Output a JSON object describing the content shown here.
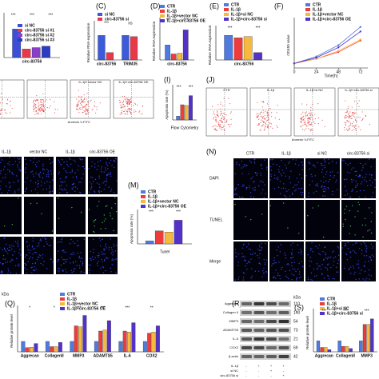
{
  "panel_labels": [
    "(C)",
    "(D)",
    "(E)",
    "(F)",
    "(I)",
    "(J)",
    "(M)",
    "(N)",
    "(Q)",
    "(R)",
    "(S)"
  ],
  "chart_data": [
    {
      "type": "bar",
      "categories": [
        "circ-83756"
      ],
      "ylim": [
        0,
        1.4
      ],
      "series": [
        {
          "name": "si NC",
          "color": "#3b4fd8",
          "values": [
            1.0
          ]
        },
        {
          "name": "circ-83756 si #1",
          "color": "#e8394a",
          "values": [
            0.3
          ]
        },
        {
          "name": "circ-83756 si #2",
          "color": "#8a3fc9",
          "values": [
            0.35
          ]
        },
        {
          "name": "circ-83756 si #3",
          "color": "#2a3cc0",
          "values": [
            0.4
          ]
        }
      ],
      "annotations": [
        "***",
        "***",
        "***"
      ]
    },
    {
      "type": "bar",
      "ylabel": "Relative RNA expression",
      "categories": [
        "circ-83756",
        "TRIM35"
      ],
      "ylim": [
        0,
        1.4
      ],
      "series": [
        {
          "name": "si NC",
          "color": "#3b5bd8",
          "values": [
            1.0,
            1.0
          ]
        },
        {
          "name": "circ-83756 si",
          "color": "#e8394a",
          "values": [
            0.3,
            0.95
          ]
        }
      ],
      "annotations": [
        "***",
        "ns"
      ]
    },
    {
      "type": "bar",
      "ylabel": "Relative RNA expression",
      "categories": [
        "circ-83756"
      ],
      "ylim": [
        0,
        2.5
      ],
      "series": [
        {
          "name": "CTR",
          "color": "#4f7be0",
          "values": [
            1.0
          ]
        },
        {
          "name": "IL-1β",
          "color": "#ee3c3c",
          "values": [
            0.4
          ]
        },
        {
          "name": "IL-1β+vector NC",
          "color": "#f4b93e",
          "values": [
            0.45
          ]
        },
        {
          "name": "IL-1β+circ-83756 OE",
          "color": "#5432c8",
          "values": [
            2.0
          ]
        }
      ],
      "annotations": [
        "***",
        "***"
      ]
    },
    {
      "type": "bar",
      "ylabel": "Relative RNA expression",
      "categories": [
        "circ-83756"
      ],
      "ylim": [
        0,
        1.2
      ],
      "series": [
        {
          "name": "CTR",
          "color": "#4f7be0",
          "values": [
            1.0
          ]
        },
        {
          "name": "IL-1β",
          "color": "#ee3c3c",
          "values": [
            0.9
          ]
        },
        {
          "name": "IL-1β+si NC",
          "color": "#f4b93e",
          "values": [
            0.95
          ]
        },
        {
          "name": "IL-1β+circ-83756 si",
          "color": "#5432c8",
          "values": [
            0.3
          ]
        }
      ],
      "annotations": [
        "***",
        "***"
      ]
    },
    {
      "type": "line",
      "ylabel": "OD450 value",
      "xlabel": "Time(h)",
      "x": [
        0,
        24,
        48,
        72
      ],
      "xlim": [
        0,
        80
      ],
      "xticks": [
        0,
        24,
        48,
        72
      ],
      "ylim": [
        0,
        2
      ],
      "series": [
        {
          "name": "CTR",
          "color": "#4f7be0",
          "values": [
            0.2,
            0.5,
            1.0,
            1.8
          ]
        },
        {
          "name": "IL-1β",
          "color": "#ee3c3c",
          "values": [
            0.2,
            0.4,
            0.7,
            1.2
          ]
        },
        {
          "name": "IL-1β+vector NC",
          "color": "#f4b93e",
          "values": [
            0.2,
            0.4,
            0.75,
            1.25
          ]
        },
        {
          "name": "IL-1β+circ-83756 OE",
          "color": "#5432c8",
          "values": [
            0.2,
            0.45,
            0.9,
            1.6
          ]
        }
      ]
    },
    {
      "type": "bar",
      "ylabel": "Apoptosis rate (%)",
      "xlabel": "Flow Cytometry",
      "ylim": [
        0,
        40
      ],
      "values": [
        5,
        20,
        19,
        32
      ],
      "colors": [
        "#4f7be0",
        "#ee3c3c",
        "#f4b93e",
        "#5432c8"
      ],
      "annotations": [
        "***",
        "***"
      ]
    },
    {
      "type": "bar",
      "ylabel": "Apoptosis rate (%)",
      "xlabel": "Tunel",
      "categories": [
        null
      ],
      "ylim": [
        0,
        50
      ],
      "series": [
        {
          "name": "CTR",
          "color": "#4f7be0",
          "values": [
            5
          ]
        },
        {
          "name": "IL-1β",
          "color": "#ee3c3c",
          "values": [
            22
          ]
        },
        {
          "name": "IL-1β+vector NC",
          "color": "#f4b93e",
          "values": [
            20
          ]
        },
        {
          "name": "IL-1β+circ-83756 OE",
          "color": "#5432c8",
          "values": [
            40
          ]
        }
      ],
      "annotations": [
        "***",
        "***"
      ]
    },
    {
      "type": "bar",
      "ylabel": "Relative protein level",
      "categories": [
        "Aggrecan",
        "CollagenII",
        "MMP3",
        "ADAMTS5",
        "IL-6",
        "COX2"
      ],
      "ylim": [
        0,
        4
      ],
      "series": [
        {
          "name": "CTR",
          "color": "#4f7be0",
          "values": [
            1,
            1,
            1,
            1,
            1,
            1
          ]
        },
        {
          "name": "IL-1β",
          "color": "#ee3c3c",
          "values": [
            0.4,
            0.5,
            2.5,
            2.0,
            2.0,
            1.8
          ]
        },
        {
          "name": "IL-1β+vector NC",
          "color": "#f4b93e",
          "values": [
            0.45,
            0.5,
            2.4,
            2.1,
            1.9,
            1.9
          ]
        },
        {
          "name": "IL-1β+circ-83756 OE",
          "color": "#5432c8",
          "values": [
            0.8,
            0.9,
            3.5,
            3.0,
            2.8,
            2.5
          ]
        }
      ],
      "annotations": [
        "*",
        "*",
        "***",
        "***",
        "***",
        "**"
      ]
    },
    {
      "type": "bar",
      "ylabel": "Relative protein level",
      "categories": [
        "Aggrecan",
        "CollagenII",
        "MMP3"
      ],
      "ylim": [
        0,
        3.5
      ],
      "series": [
        {
          "name": "CTR",
          "color": "#4f7be0",
          "values": [
            1,
            1,
            1
          ]
        },
        {
          "name": "IL-1β",
          "color": "#ee3c3c",
          "values": [
            0.4,
            0.5,
            2.5
          ]
        },
        {
          "name": "IL-1β+si NC",
          "color": "#f4b93e",
          "values": [
            0.4,
            0.5,
            2.5
          ]
        },
        {
          "name": "IL-1β+circ-83756 si",
          "color": "#5432c8",
          "values": [
            0.2,
            0.3,
            3.0
          ]
        }
      ],
      "annotations": [
        "***",
        "***",
        "***"
      ]
    }
  ],
  "flow_left": {
    "headers": [
      "IL-1β+vector NC",
      "IL-1β+circ-83756 OE"
    ],
    "axis": "Annexin V-FITC"
  },
  "flow_right": {
    "headers": [
      "CTR",
      "IL-1β",
      "IL-1β+si NC",
      "IL-1β+circ-83756 si"
    ],
    "axis": "Annexin V-FITC"
  },
  "micro_left": {
    "headers": [
      "IL-1β",
      "vector NC",
      "IL-1β",
      "circ-83756 OE"
    ]
  },
  "micro_right": {
    "headers": [
      "CTR",
      "IL-1β",
      "si NC",
      "circ-83756 si"
    ],
    "rows": [
      "DAPI",
      "TUNEL",
      "Merge"
    ]
  },
  "blot": {
    "unit": "kDa",
    "proteins": [
      "Aggrecan",
      "Collagen II",
      "MMP3",
      "ADAMTS5",
      "IL-6",
      "COX2",
      "β-actin"
    ],
    "kda": [
      "110",
      "140",
      "54",
      "73",
      "21",
      "69",
      "42"
    ],
    "conditions": [
      "IL-1β",
      "si NC",
      "circ-83756 si"
    ],
    "signs": [
      [
        "-",
        "+",
        "+",
        "+"
      ],
      [
        "-",
        "-",
        "+",
        "-"
      ],
      [
        "-",
        "-",
        "-",
        "+"
      ]
    ]
  }
}
